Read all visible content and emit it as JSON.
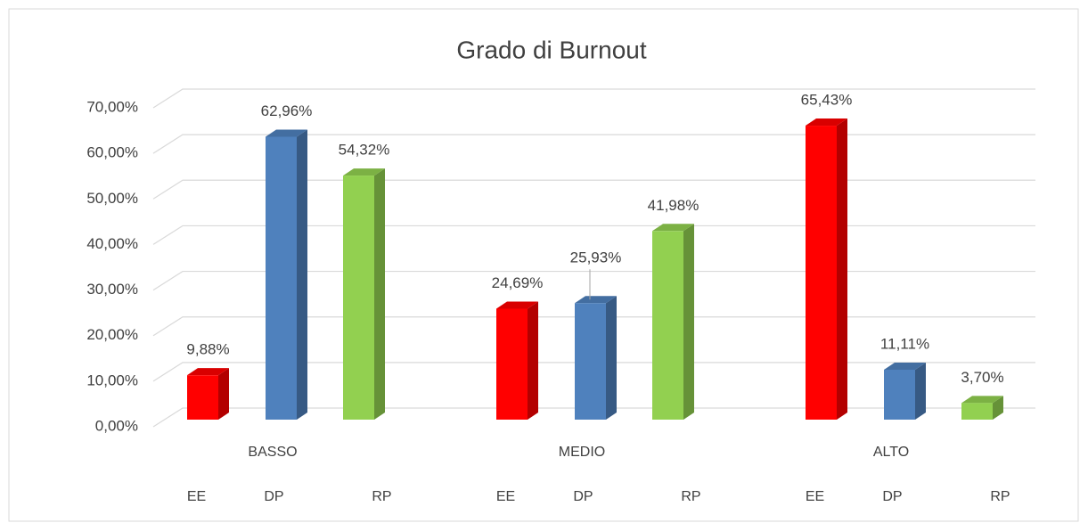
{
  "chart_data": {
    "type": "bar3d",
    "title": "Grado di Burnout",
    "categories": [
      "BASSO",
      "MEDIO",
      "ALTO"
    ],
    "series": [
      {
        "name": "EE",
        "color": "#ff0000",
        "values": [
          9.88,
          24.69,
          65.43
        ],
        "value_labels": [
          "9,88%",
          "24,69%",
          "65,43%"
        ]
      },
      {
        "name": "DP",
        "color": "#4f81bd",
        "values": [
          62.96,
          25.93,
          11.11
        ],
        "value_labels": [
          "62,96%",
          "25,93%",
          "11,11%"
        ]
      },
      {
        "name": "RP",
        "color": "#92d050",
        "values": [
          54.32,
          41.98,
          3.7
        ],
        "value_labels": [
          "54,32%",
          "41,98%",
          "3,70%"
        ]
      }
    ],
    "ylim": [
      0,
      70
    ],
    "yticks": [
      {
        "value": 0,
        "label": "0,00%"
      },
      {
        "value": 10,
        "label": "10,00%"
      },
      {
        "value": 20,
        "label": "20,00%"
      },
      {
        "value": 30,
        "label": "30,00%"
      },
      {
        "value": 40,
        "label": "40,00%"
      },
      {
        "value": 50,
        "label": "50,00%"
      },
      {
        "value": 60,
        "label": "60,00%"
      },
      {
        "value": 70,
        "label": "70,00%"
      }
    ],
    "grid": true
  }
}
